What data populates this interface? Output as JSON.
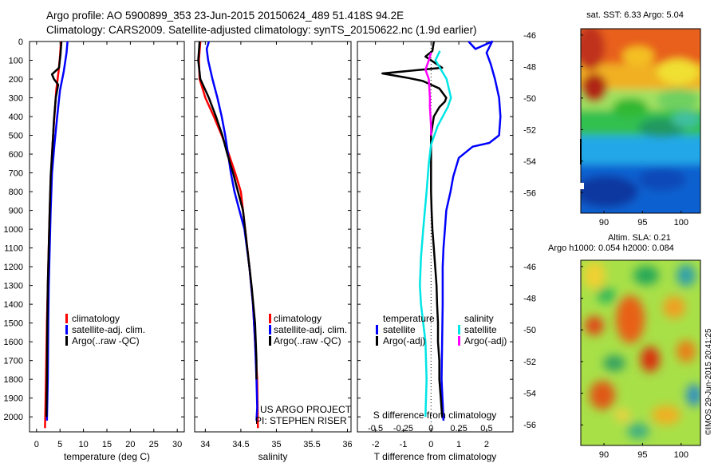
{
  "title": {
    "line1": "Argo profile: AO 5900899_353 23-Jun-2015 20150624_489 51.418S 94.2E",
    "line2": "Climatology: CARS2009. Satellite-adjusted climatology: synTS_20150622.nc (1.9d earlier)"
  },
  "colors": {
    "climatology": "#ff0000",
    "satellite": "#0000ff",
    "argo": "#000000",
    "sat_salinity": "#00e5e5",
    "argo_salinity": "#ff00ff"
  },
  "depth_ticks": [
    "0",
    "100",
    "200",
    "300",
    "400",
    "500",
    "600",
    "700",
    "800",
    "900",
    "1000",
    "1100",
    "1200",
    "1300",
    "1400",
    "1500",
    "1600",
    "1700",
    "1800",
    "1900",
    "2000"
  ],
  "chart_data": [
    {
      "type": "line",
      "name": "temperature",
      "xlabel": "temperature (deg C)",
      "xticks": [
        "0",
        "5",
        "10",
        "15",
        "20",
        "25",
        "30"
      ],
      "xlim": [
        -1.5,
        31.5
      ],
      "ylim": [
        0,
        2080
      ],
      "legend": {
        "position": "middle",
        "entries": [
          "climatology",
          "satellite-adj. clim.",
          "Argo(..raw -QC)"
        ]
      },
      "series": [
        {
          "name": "climatology",
          "color": "#ff0000",
          "points": [
            [
              5.2,
              0
            ],
            [
              5,
              80
            ],
            [
              4.7,
              160
            ],
            [
              4.2,
              260
            ],
            [
              3.8,
              400
            ],
            [
              3.4,
              550
            ],
            [
              3.1,
              700
            ],
            [
              2.8,
              900
            ],
            [
              2.6,
              1100
            ],
            [
              2.4,
              1300
            ],
            [
              2.2,
              1500
            ],
            [
              2.0,
              1800
            ],
            [
              1.8,
              2060
            ]
          ]
        },
        {
          "name": "satellite-adj. clim.",
          "color": "#0000ff",
          "points": [
            [
              6.6,
              0
            ],
            [
              6.4,
              60
            ],
            [
              5.8,
              160
            ],
            [
              5.0,
              260
            ],
            [
              4.4,
              400
            ],
            [
              3.8,
              550
            ],
            [
              3.3,
              700
            ],
            [
              3.0,
              900
            ],
            [
              2.8,
              1100
            ],
            [
              2.6,
              1300
            ],
            [
              2.5,
              1500
            ],
            [
              2.4,
              1800
            ],
            [
              2.2,
              2020
            ]
          ]
        },
        {
          "name": "Argo(..raw -QC)",
          "color": "#000000",
          "points": [
            [
              5.3,
              0
            ],
            [
              5.1,
              70
            ],
            [
              4.8,
              140
            ],
            [
              3.3,
              175
            ],
            [
              3.7,
              200
            ],
            [
              4.6,
              230
            ],
            [
              4.1,
              300
            ],
            [
              3.7,
              420
            ],
            [
              3.4,
              560
            ],
            [
              3.0,
              720
            ],
            [
              2.8,
              900
            ],
            [
              2.6,
              1100
            ],
            [
              2.4,
              1300
            ],
            [
              2.3,
              1500
            ],
            [
              2.2,
              1800
            ],
            [
              2.1,
              2000
            ]
          ]
        }
      ]
    },
    {
      "type": "line",
      "name": "salinity",
      "xlabel": "salinity",
      "xticks": [
        "34",
        "34.5",
        "35",
        "35.5",
        "36"
      ],
      "xlim": [
        33.85,
        36.05
      ],
      "ylim": [
        0,
        2080
      ],
      "legend": {
        "position": "middle",
        "entries": [
          "climatology",
          "satellite-adj. clim.",
          "Argo(..raw -QC)"
        ]
      },
      "annotations": [
        "US ARGO PROJECT",
        "PI: STEPHEN RISER"
      ],
      "series": [
        {
          "name": "climatology",
          "color": "#ff0000",
          "points": [
            [
              33.93,
              0
            ],
            [
              33.91,
              100
            ],
            [
              33.92,
              200
            ],
            [
              34.0,
              300
            ],
            [
              34.12,
              400
            ],
            [
              34.23,
              500
            ],
            [
              34.33,
              600
            ],
            [
              34.42,
              700
            ],
            [
              34.5,
              800
            ],
            [
              34.56,
              1000
            ],
            [
              34.62,
              1200
            ],
            [
              34.67,
              1400
            ],
            [
              34.7,
              1600
            ],
            [
              34.73,
              1800
            ],
            [
              34.74,
              2060
            ]
          ]
        },
        {
          "name": "satellite-adj. clim.",
          "color": "#0000ff",
          "points": [
            [
              34.05,
              0
            ],
            [
              34.02,
              40
            ],
            [
              34.04,
              100
            ],
            [
              34.1,
              200
            ],
            [
              34.17,
              300
            ],
            [
              34.23,
              400
            ],
            [
              34.28,
              500
            ],
            [
              34.32,
              600
            ],
            [
              34.36,
              700
            ],
            [
              34.41,
              800
            ],
            [
              34.48,
              900
            ],
            [
              34.55,
              1000
            ],
            [
              34.62,
              1200
            ],
            [
              34.67,
              1400
            ],
            [
              34.7,
              1600
            ],
            [
              34.72,
              1800
            ],
            [
              34.73,
              1950
            ],
            [
              34.72,
              2020
            ]
          ]
        },
        {
          "name": "Argo(..raw -QC)",
          "color": "#000000",
          "points": [
            [
              33.92,
              0
            ],
            [
              33.9,
              100
            ],
            [
              33.93,
              200
            ],
            [
              34.05,
              300
            ],
            [
              34.15,
              400
            ],
            [
              34.24,
              500
            ],
            [
              34.31,
              600
            ],
            [
              34.39,
              700
            ],
            [
              34.46,
              800
            ],
            [
              34.53,
              900
            ],
            [
              34.59,
              1100
            ],
            [
              34.65,
              1300
            ],
            [
              34.7,
              1500
            ],
            [
              34.72,
              1700
            ],
            [
              34.72,
              1800
            ]
          ]
        }
      ]
    },
    {
      "type": "line",
      "name": "difference from climatology",
      "xlabel": "T difference from climatology",
      "xlabel2": "S difference from climatology",
      "xticks": [
        "-2",
        "-1",
        "0",
        "1",
        "2"
      ],
      "xticks2": [
        "-0.5",
        "-0.25",
        "0",
        "0.25",
        "0.5"
      ],
      "xlim": [
        -2.65,
        2.95
      ],
      "ylim": [
        0,
        2080
      ],
      "legend": {
        "position": "middle",
        "headers": [
          "temperature",
          "salinity"
        ],
        "entries": [
          "satellite",
          "Argo(-adj)",
          "satellite",
          "Argo(-adj)"
        ]
      },
      "series": [
        {
          "name": "satellite",
          "group": "temperature",
          "color": "#0000ff",
          "points": [
            [
              1.35,
              0
            ],
            [
              1.6,
              40
            ],
            [
              2.2,
              0
            ],
            [
              2.0,
              60
            ],
            [
              2.15,
              120
            ],
            [
              2.3,
              200
            ],
            [
              2.45,
              300
            ],
            [
              2.5,
              400
            ],
            [
              2.45,
              500
            ],
            [
              2.1,
              540
            ],
            [
              1.5,
              560
            ],
            [
              1.0,
              620
            ],
            [
              0.8,
              720
            ],
            [
              0.7,
              800
            ],
            [
              0.55,
              900
            ],
            [
              0.5,
              1000
            ],
            [
              0.45,
              1100
            ],
            [
              0.42,
              1200
            ],
            [
              0.42,
              1400
            ],
            [
              0.4,
              1600
            ],
            [
              0.38,
              1800
            ],
            [
              0.45,
              2020
            ]
          ]
        },
        {
          "name": "Argo(-adj)",
          "group": "temperature",
          "color": "#000000",
          "points": [
            [
              0.1,
              0
            ],
            [
              0.05,
              50
            ],
            [
              -0.2,
              80
            ],
            [
              0.4,
              140
            ],
            [
              -1.75,
              170
            ],
            [
              -0.8,
              195
            ],
            [
              -0.3,
              210
            ],
            [
              0.3,
              250
            ],
            [
              0.55,
              300
            ],
            [
              0.5,
              320
            ],
            [
              0.3,
              350
            ],
            [
              0.1,
              400
            ],
            [
              0.05,
              450
            ],
            [
              0,
              500
            ],
            [
              0,
              560
            ],
            [
              0,
              600
            ],
            [
              0,
              700
            ],
            [
              0,
              800
            ],
            [
              0.02,
              900
            ],
            [
              0.05,
              1000
            ],
            [
              0.1,
              1100
            ],
            [
              0.15,
              1200
            ],
            [
              0.2,
              1300
            ],
            [
              0.22,
              1400
            ],
            [
              0.25,
              1500
            ],
            [
              0.25,
              1600
            ],
            [
              0.3,
              1700
            ],
            [
              0.3,
              1800
            ],
            [
              0.35,
              1900
            ],
            [
              0.4,
              2000
            ]
          ]
        },
        {
          "name": "satellite",
          "group": "salinity",
          "color": "#00e5e5",
          "points": [
            [
              0.08,
              50
            ],
            [
              0.04,
              100
            ],
            [
              0.14,
              200
            ],
            [
              0.18,
              300
            ],
            [
              0.15,
              350
            ],
            [
              0.06,
              450
            ],
            [
              0.0,
              550
            ],
            [
              -0.02,
              650
            ],
            [
              -0.04,
              800
            ],
            [
              -0.07,
              1000
            ],
            [
              -0.09,
              1150
            ],
            [
              -0.1,
              1300
            ],
            [
              -0.09,
              1400
            ],
            [
              -0.05,
              1600
            ],
            [
              -0.04,
              1800
            ],
            [
              -0.05,
              2000
            ]
          ]
        },
        {
          "name": "Argo(-adj)",
          "group": "salinity",
          "color": "#ff00ff",
          "points": [
            [
              0,
              60
            ],
            [
              -0.02,
              100
            ],
            [
              -0.05,
              150
            ],
            [
              -0.02,
              200
            ],
            [
              -0.01,
              300
            ],
            [
              -0.01,
              350
            ],
            [
              0,
              450
            ],
            [
              0,
              500
            ]
          ]
        }
      ]
    },
    {
      "type": "heatmap",
      "name": "sat. SST",
      "title": "sat. SST: 6.33  Argo: 5.04",
      "xticks": [
        "90",
        "95",
        "100"
      ],
      "yticks": [
        "-46",
        "-48",
        "-50",
        "-52",
        "-54",
        "-56"
      ],
      "xlim": [
        87.0,
        102.5
      ],
      "ylim": [
        -57.3,
        -45.6
      ],
      "colormap": "jet",
      "marker": {
        "label": "Argo",
        "lon": 94.2,
        "lat": -51.418
      }
    },
    {
      "type": "heatmap",
      "name": "Altim. SLA",
      "title": "Altim. SLA: 0.21",
      "subtitle": "Argo h1000: 0.054  h2000: 0.084",
      "xticks": [
        "90",
        "95",
        "100"
      ],
      "yticks": [
        "-46",
        "-48",
        "-50",
        "-52",
        "-54",
        "-56"
      ],
      "xlim": [
        87.0,
        102.5
      ],
      "ylim": [
        -57.3,
        -45.6
      ],
      "colormap": "jet"
    }
  ],
  "watermark": "©IMOS 29-Jun-2015 20:41:25"
}
